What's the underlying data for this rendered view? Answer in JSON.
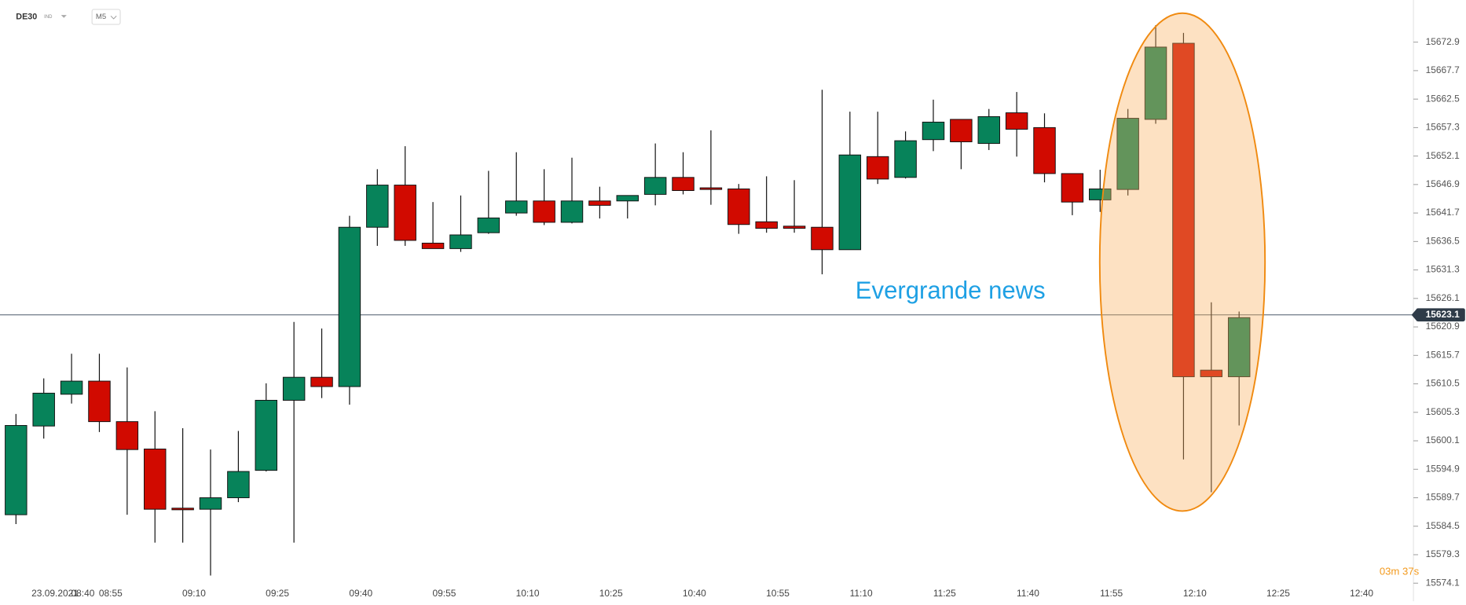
{
  "header": {
    "symbol": "DE30",
    "market": "IND",
    "interval": "M5"
  },
  "chart_data": {
    "type": "candlestick",
    "categories": [
      null,
      "23.09.2021",
      "08:40",
      "08:55",
      null,
      null,
      "09:10",
      null,
      null,
      "09:25",
      null,
      null,
      "09:40",
      null,
      null,
      "09:55",
      null,
      null,
      "10:10",
      null,
      null,
      "10:25",
      null,
      null,
      "10:40",
      null,
      null,
      "10:55",
      null,
      null,
      "11:10",
      null,
      null,
      "11:25",
      null,
      null,
      "11:40",
      null,
      null,
      "11:55",
      null,
      null,
      "12:10",
      null,
      null,
      "12:25",
      null,
      null,
      "12:40"
    ],
    "open": [
      15586.6,
      15602.8,
      15608.6,
      15611.0,
      15603.6,
      15598.6,
      15587.8,
      15587.6,
      15589.7,
      15594.7,
      15607.5,
      15611.7,
      15610.0,
      15639.1,
      15646.8,
      15636.2,
      15635.2,
      15638.1,
      15641.7,
      15643.9,
      15640.0,
      15643.9,
      15643.9,
      15645.1,
      15648.2,
      15646.3,
      15646.1,
      15640.1,
      15639.3,
      15639.1,
      15635.0,
      15652.0,
      15648.2,
      15655.1,
      15658.8,
      15654.4,
      15660.0,
      15657.3,
      15648.9,
      15644.1,
      15646.0,
      15658.8,
      15672.7,
      15613.0,
      15611.8,
      null,
      null,
      null,
      null
    ],
    "high": [
      15605.0,
      15611.5,
      15616.0,
      15616.0,
      15613.5,
      15605.5,
      15602.4,
      15598.5,
      15601.9,
      15610.6,
      15621.8,
      15620.6,
      15641.2,
      15649.7,
      15653.9,
      15643.7,
      15644.9,
      15649.4,
      15652.8,
      15649.7,
      15651.8,
      15646.5,
      15644.9,
      15654.4,
      15652.8,
      15656.8,
      15647.0,
      15648.4,
      15647.7,
      15664.2,
      15660.2,
      15660.2,
      15656.6,
      15662.4,
      15658.8,
      15660.7,
      15663.8,
      15659.9,
      15648.9,
      15649.6,
      15660.7,
      15676.0,
      15674.6,
      15625.4,
      15623.7,
      null,
      null,
      null,
      null
    ],
    "low": [
      15584.9,
      15600.5,
      15606.9,
      15601.7,
      15586.6,
      15581.5,
      15581.5,
      15575.5,
      15588.9,
      15594.5,
      15581.5,
      15607.9,
      15606.7,
      15635.7,
      15635.7,
      15635.2,
      15634.6,
      15637.9,
      15641.2,
      15639.5,
      15639.8,
      15640.7,
      15640.7,
      15643.1,
      15645.1,
      15643.2,
      15637.9,
      15638.1,
      15638.1,
      15630.5,
      15635.0,
      15647.0,
      15648.0,
      15653.0,
      15649.7,
      15653.2,
      15652.0,
      15647.3,
      15641.3,
      15641.9,
      15644.9,
      15658.0,
      15596.7,
      15590.7,
      15602.9,
      null,
      null,
      null,
      null
    ],
    "close": [
      15602.9,
      15608.8,
      15611.0,
      15603.6,
      15598.5,
      15587.6,
      15587.5,
      15589.7,
      15594.5,
      15607.5,
      15611.7,
      15610.0,
      15639.1,
      15646.8,
      15636.7,
      15635.2,
      15637.7,
      15640.8,
      15643.9,
      15640.0,
      15643.9,
      15643.1,
      15644.9,
      15648.2,
      15645.8,
      15646.0,
      15639.6,
      15638.9,
      15638.9,
      15635.0,
      15652.3,
      15647.9,
      15654.9,
      15658.3,
      15654.7,
      15659.3,
      15657.0,
      15648.9,
      15643.7,
      15646.1,
      15659.0,
      15672.0,
      15611.8,
      15611.8,
      15622.6,
      null,
      null,
      null,
      null
    ],
    "up_color": "#07835a",
    "down_color": "#d10a00",
    "ylim": [
      15570.8,
      15680.6
    ],
    "yticks": [
      15672.9,
      15667.7,
      15662.5,
      15657.3,
      15652.1,
      15646.9,
      15641.7,
      15636.5,
      15631.3,
      15626.1,
      15620.9,
      15615.7,
      15610.5,
      15605.3,
      15600.1,
      15594.9,
      15589.7,
      15584.5,
      15579.3,
      15574.1
    ],
    "last_price": 15623.1,
    "annotation": "Evergrande news",
    "countdown": "03m 37s"
  }
}
